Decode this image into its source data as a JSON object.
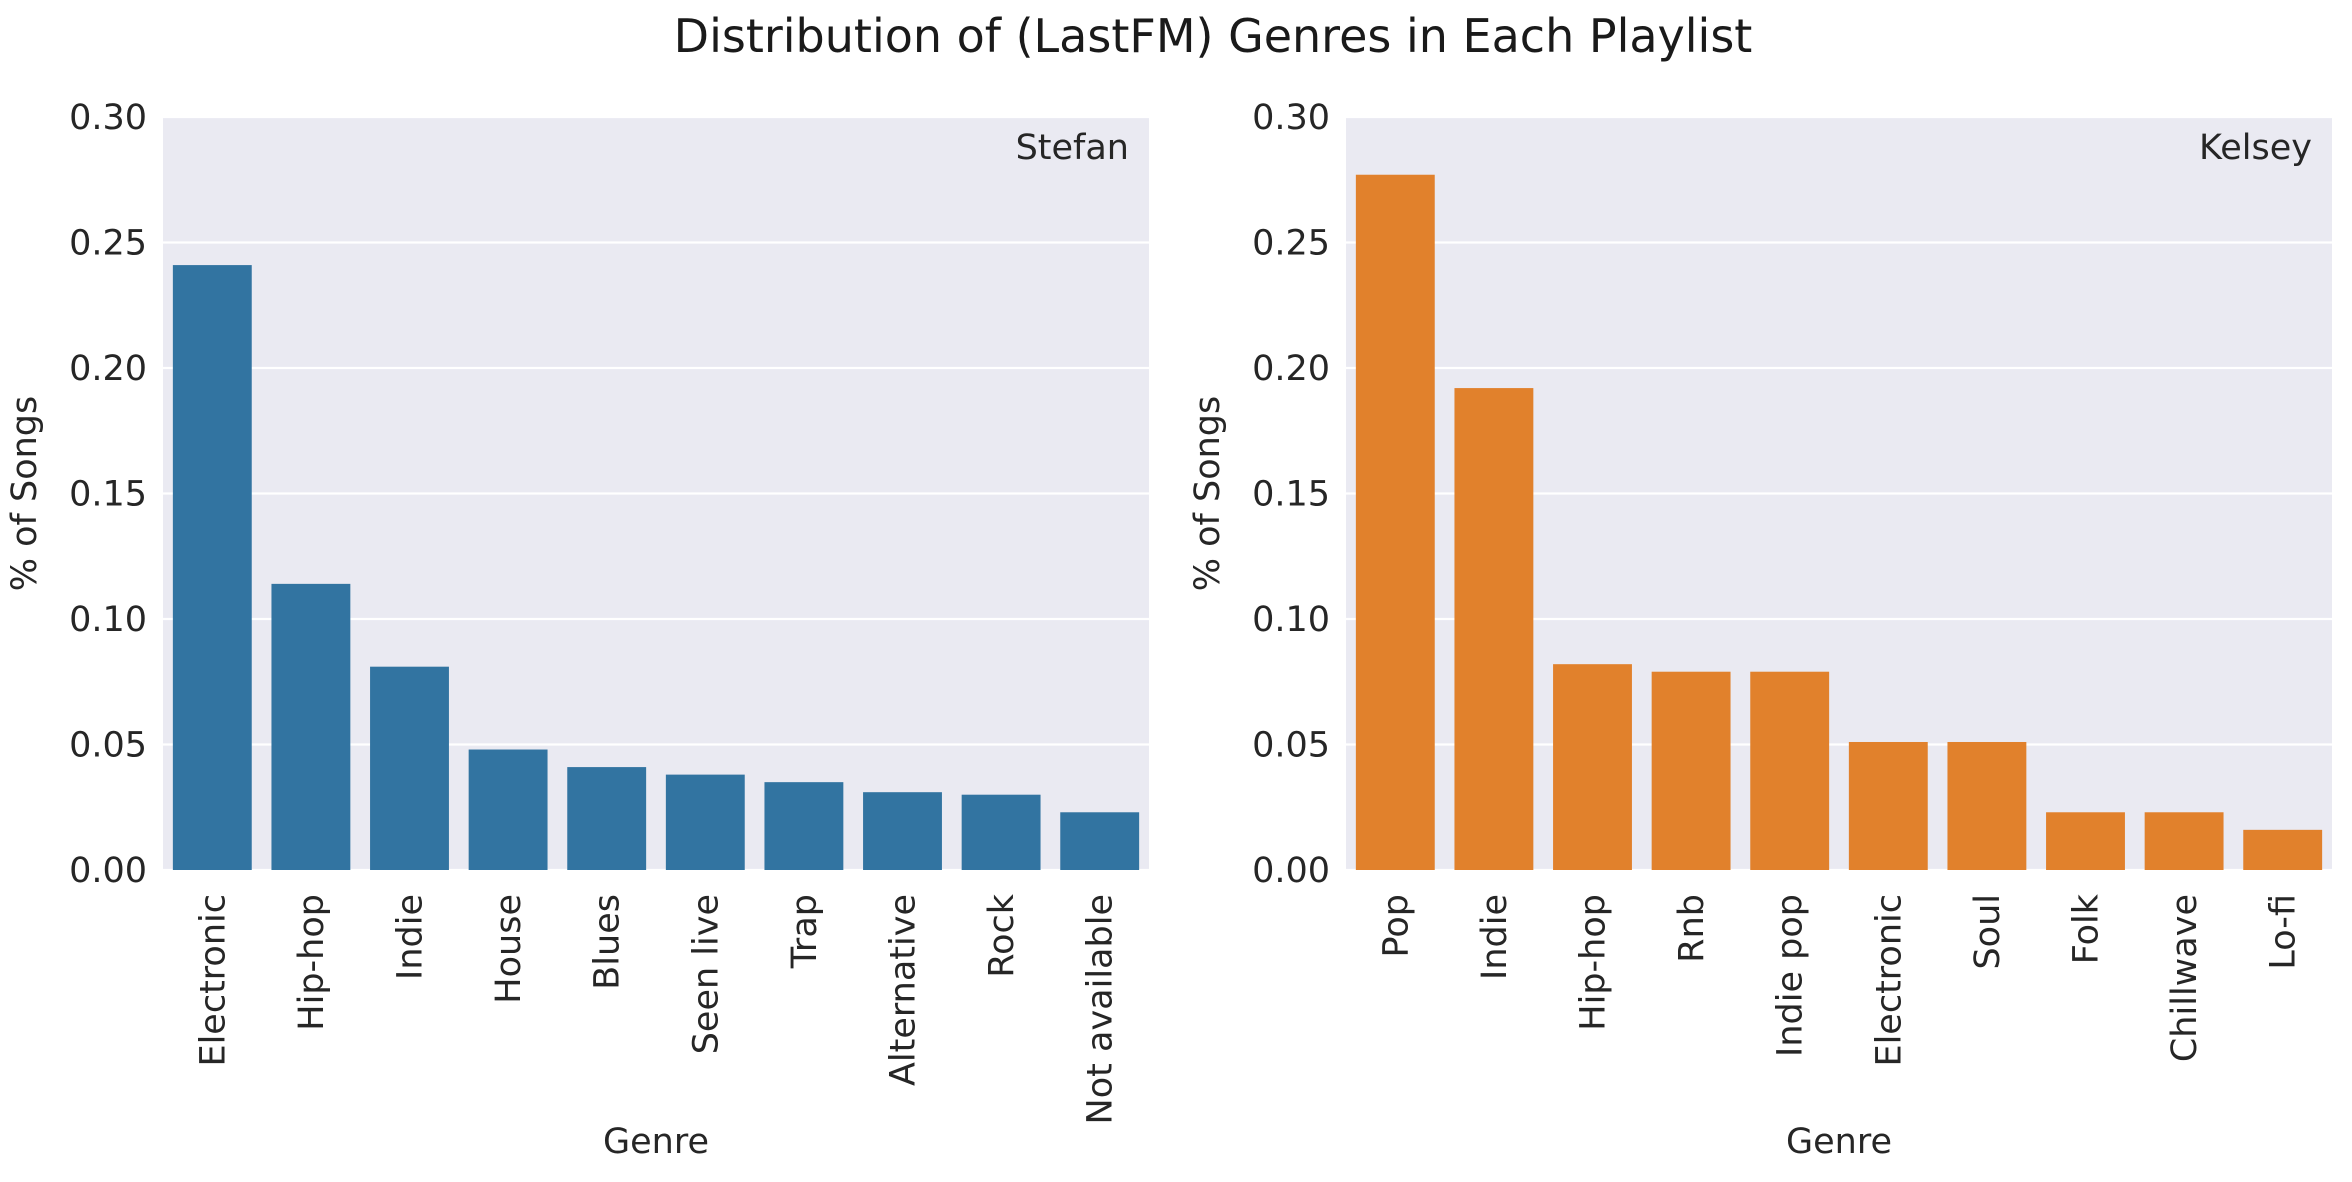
{
  "figure": {
    "title": "Distribution of (LastFM) Genres in Each Playlist"
  },
  "chart_data": [
    {
      "type": "bar",
      "panel_label": "Stefan",
      "xlabel": "Genre",
      "ylabel": "% of Songs",
      "ylim": [
        0,
        0.3
      ],
      "yticks": [
        "0.00",
        "0.05",
        "0.10",
        "0.15",
        "0.20",
        "0.25",
        "0.30"
      ],
      "grid": true,
      "color": "#3274a1",
      "categories": [
        "Electronic",
        "Hip-hop",
        "Indie",
        "House",
        "Blues",
        "Seen live",
        "Trap",
        "Alternative",
        "Rock",
        "Not available"
      ],
      "values": [
        0.241,
        0.114,
        0.081,
        0.048,
        0.041,
        0.038,
        0.035,
        0.031,
        0.03,
        0.023
      ]
    },
    {
      "type": "bar",
      "panel_label": "Kelsey",
      "xlabel": "Genre",
      "ylabel": "% of Songs",
      "ylim": [
        0,
        0.3
      ],
      "yticks": [
        "0.00",
        "0.05",
        "0.10",
        "0.15",
        "0.20",
        "0.25",
        "0.30"
      ],
      "grid": true,
      "color": "#e1812c",
      "categories": [
        "Pop",
        "Indie",
        "Hip-hop",
        "Rnb",
        "Indie pop",
        "Electronic",
        "Soul",
        "Folk",
        "Chillwave",
        "Lo-fi"
      ],
      "values": [
        0.277,
        0.192,
        0.082,
        0.079,
        0.079,
        0.051,
        0.051,
        0.023,
        0.023,
        0.016
      ]
    }
  ]
}
